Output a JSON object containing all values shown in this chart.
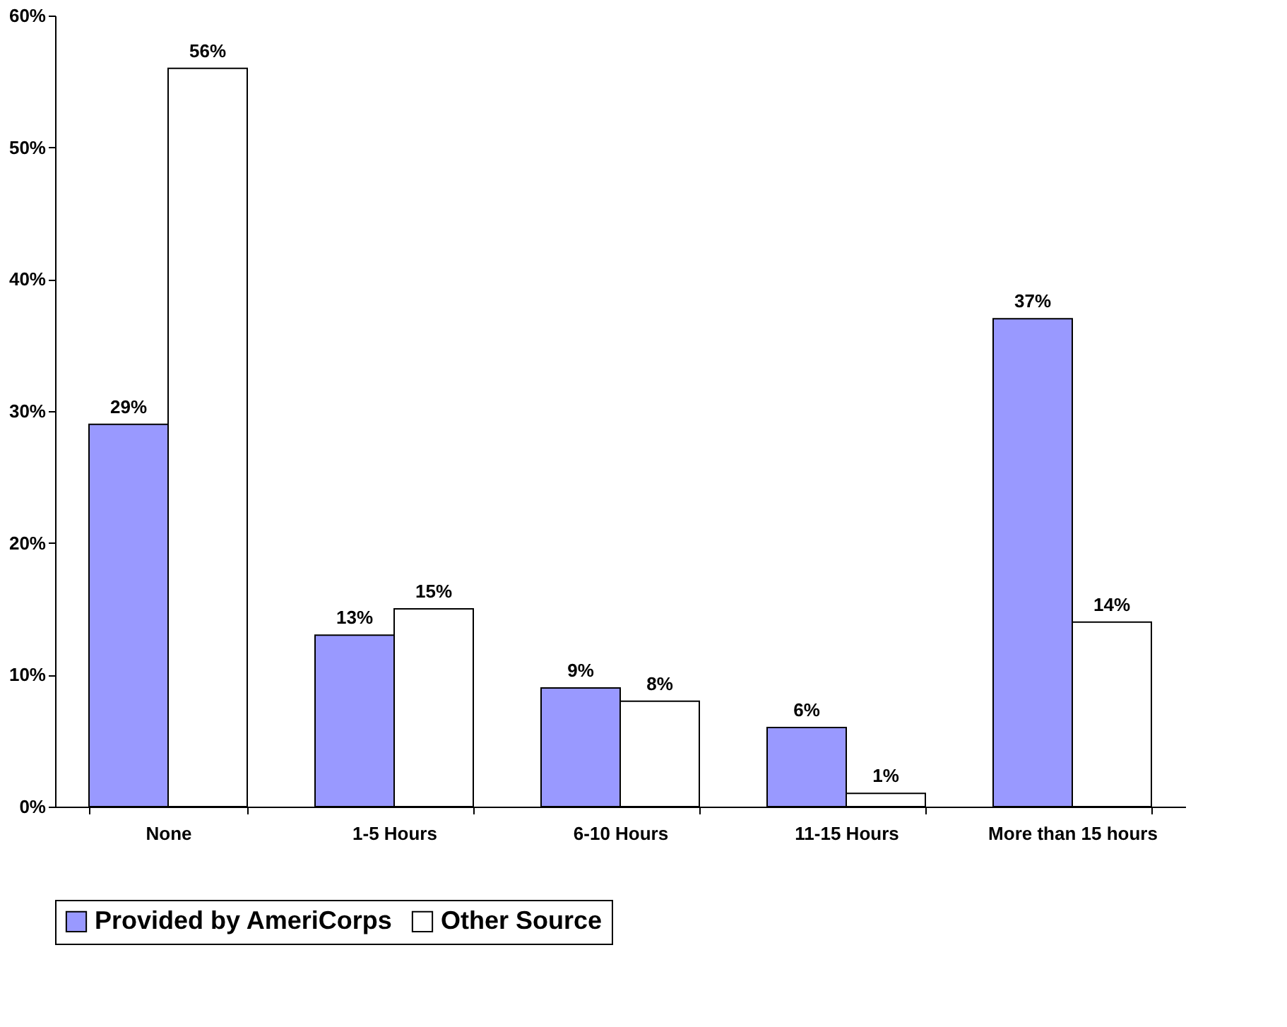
{
  "chart_data": {
    "type": "bar",
    "categories": [
      "None",
      "1-5 Hours",
      "6-10 Hours",
      "11-15 Hours",
      "More than 15 hours"
    ],
    "series": [
      {
        "name": "Provided by AmeriCorps",
        "color": "#9999ff",
        "values": [
          29,
          13,
          9,
          6,
          37
        ],
        "value_labels": [
          "29%",
          "13%",
          "9%",
          "6%",
          "37%"
        ]
      },
      {
        "name": "Other Source",
        "color": "#ffffff",
        "values": [
          56,
          15,
          8,
          1,
          14
        ],
        "value_labels": [
          "56%",
          "15%",
          "8%",
          "1%",
          "14%"
        ]
      }
    ],
    "ylim": [
      0,
      60
    ],
    "yticks": [
      {
        "value": 0,
        "label": "0%"
      },
      {
        "value": 10,
        "label": "10%"
      },
      {
        "value": 20,
        "label": "20%"
      },
      {
        "value": 30,
        "label": "30%"
      },
      {
        "value": 40,
        "label": "40%"
      },
      {
        "value": 50,
        "label": "50%"
      },
      {
        "value": 60,
        "label": "60%"
      }
    ],
    "grid": false,
    "legend": "bottom"
  }
}
